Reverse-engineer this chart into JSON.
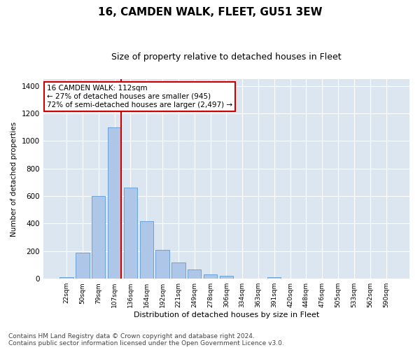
{
  "title": "16, CAMDEN WALK, FLEET, GU51 3EW",
  "subtitle": "Size of property relative to detached houses in Fleet",
  "xlabel": "Distribution of detached houses by size in Fleet",
  "ylabel": "Number of detached properties",
  "categories": [
    "22sqm",
    "50sqm",
    "79sqm",
    "107sqm",
    "136sqm",
    "164sqm",
    "192sqm",
    "221sqm",
    "249sqm",
    "278sqm",
    "306sqm",
    "334sqm",
    "363sqm",
    "391sqm",
    "420sqm",
    "448sqm",
    "476sqm",
    "505sqm",
    "533sqm",
    "562sqm",
    "590sqm"
  ],
  "values": [
    10,
    190,
    600,
    1100,
    660,
    420,
    210,
    120,
    65,
    30,
    20,
    0,
    0,
    10,
    0,
    0,
    0,
    0,
    0,
    0,
    0
  ],
  "bar_color": "#aec6e8",
  "bar_edge_color": "#5b9bd5",
  "vline_color": "#cc0000",
  "annotation_text": "16 CAMDEN WALK: 112sqm\n← 27% of detached houses are smaller (945)\n72% of semi-detached houses are larger (2,497) →",
  "annotation_box_color": "#ffffff",
  "annotation_box_edge": "#cc0000",
  "ylim": [
    0,
    1450
  ],
  "yticks": [
    0,
    200,
    400,
    600,
    800,
    1000,
    1200,
    1400
  ],
  "plot_bg_color": "#dce6f1",
  "footer": "Contains HM Land Registry data © Crown copyright and database right 2024.\nContains public sector information licensed under the Open Government Licence v3.0.",
  "title_fontsize": 11,
  "subtitle_fontsize": 9,
  "annotation_fontsize": 7.5,
  "footer_fontsize": 6.5,
  "ylabel_fontsize": 7.5,
  "xlabel_fontsize": 8,
  "ytick_fontsize": 7.5,
  "xtick_fontsize": 6.5
}
